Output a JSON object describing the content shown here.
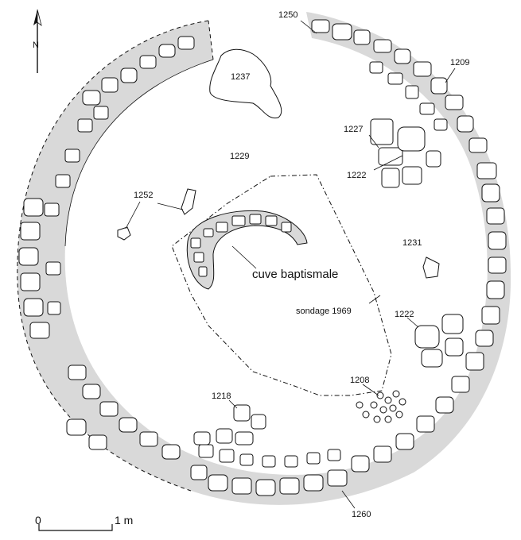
{
  "north": {
    "letter": "N"
  },
  "labels": {
    "l1250": "1250",
    "l1209": "1209",
    "l1237": "1237",
    "l1227": "1227",
    "l1229": "1229",
    "l1222a": "1222",
    "l1252": "1252",
    "l1231": "1231",
    "cuve": "cuve baptismale",
    "sondage": "sondage 1969",
    "l1222b": "1222",
    "l1208": "1208",
    "l1218": "1218",
    "l1260": "1260"
  },
  "scale": {
    "start": "0",
    "end": "1 m"
  },
  "colors": {
    "fill": "#d9d9d9",
    "ink": "#111111"
  }
}
